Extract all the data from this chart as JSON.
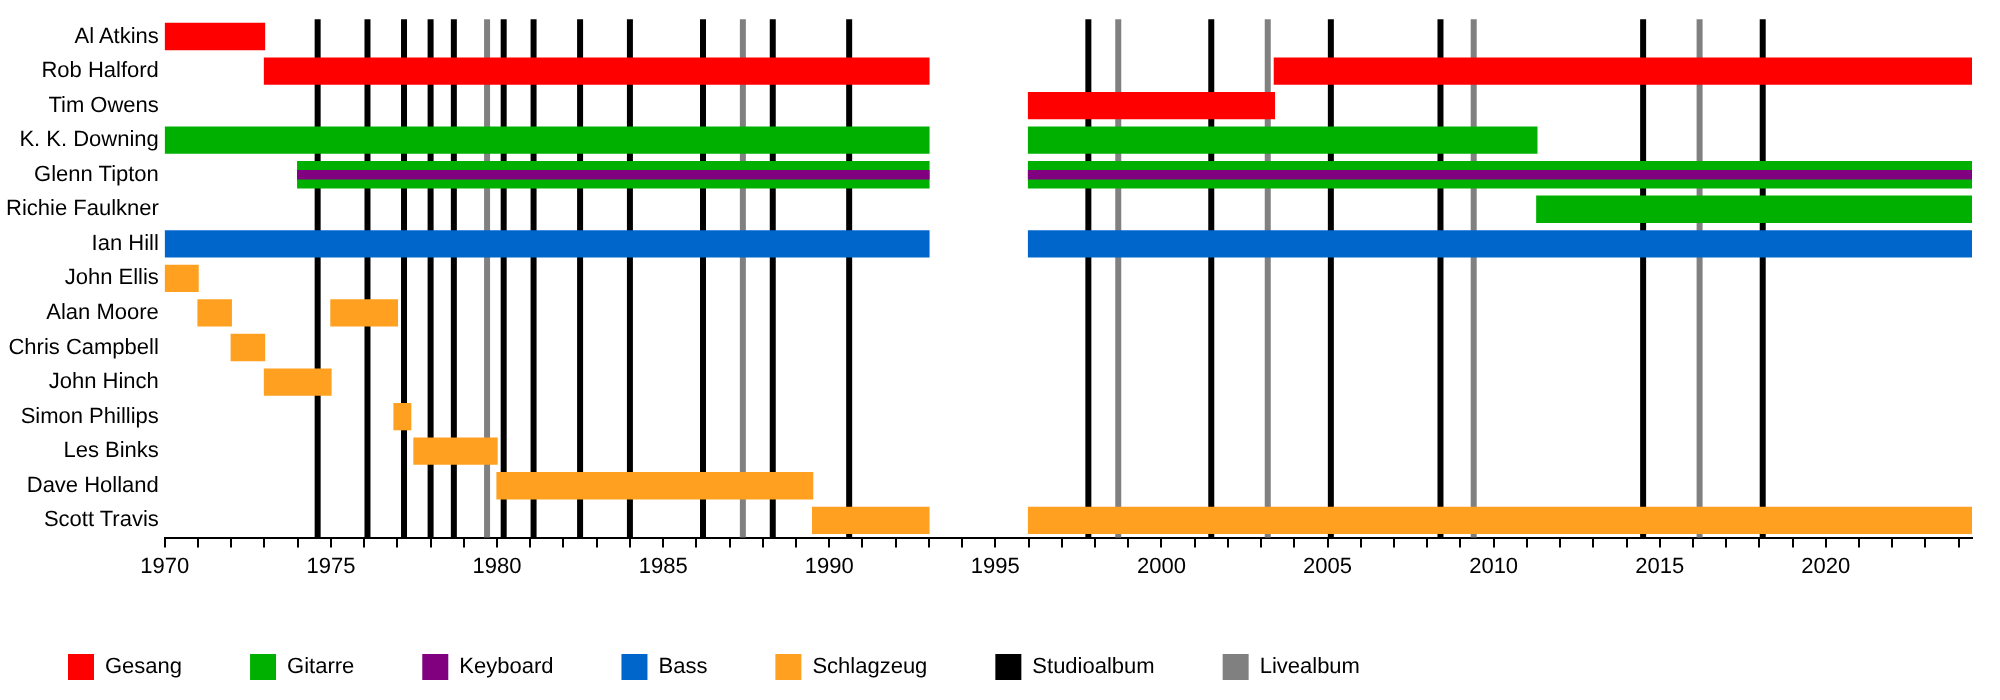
{
  "chart_data": {
    "type": "bar",
    "orientation": "horizontal",
    "legend": "bottom",
    "grid": false,
    "categories": [
      "Al Atkins",
      "Rob Halford",
      "Tim Owens",
      "K. K. Downing",
      "Glenn Tipton",
      "Richie Faulkner",
      "Ian Hill",
      "John Ellis",
      "Alan Moore",
      "Chris Campbell",
      "John Hinch",
      "Simon Phillips",
      "Les Binks",
      "Dave Holland",
      "Scott Travis"
    ],
    "xlim": [
      1970,
      2024.4
    ],
    "xticks": [
      1970,
      {
        "value": 1971,
        "label": null
      },
      {
        "value": 1972,
        "label": null
      },
      {
        "value": 1973,
        "label": null
      },
      {
        "value": 1974,
        "label": null
      },
      1975,
      {
        "value": 1976,
        "label": null
      },
      {
        "value": 1977,
        "label": null
      },
      {
        "value": 1978,
        "label": null
      },
      {
        "value": 1979,
        "label": null
      },
      1980,
      {
        "value": 1981,
        "label": null
      },
      {
        "value": 1982,
        "label": null
      },
      {
        "value": 1983,
        "label": null
      },
      {
        "value": 1984,
        "label": null
      },
      1985,
      {
        "value": 1986,
        "label": null
      },
      {
        "value": 1987,
        "label": null
      },
      {
        "value": 1988,
        "label": null
      },
      {
        "value": 1989,
        "label": null
      },
      1990,
      {
        "value": 1991,
        "label": null
      },
      {
        "value": 1992,
        "label": null
      },
      {
        "value": 1993,
        "label": null
      },
      {
        "value": 1994,
        "label": null
      },
      1995,
      {
        "value": 1996,
        "label": null
      },
      {
        "value": 1997,
        "label": null
      },
      {
        "value": 1998,
        "label": null
      },
      {
        "value": 1999,
        "label": null
      },
      2000,
      {
        "value": 2001,
        "label": null
      },
      {
        "value": 2002,
        "label": null
      },
      {
        "value": 2003,
        "label": null
      },
      {
        "value": 2004,
        "label": null
      },
      2005,
      {
        "value": 2006,
        "label": null
      },
      {
        "value": 2007,
        "label": null
      },
      {
        "value": 2008,
        "label": null
      },
      {
        "value": 2009,
        "label": null
      },
      2010,
      {
        "value": 2011,
        "label": null
      },
      {
        "value": 2012,
        "label": null
      },
      {
        "value": 2013,
        "label": null
      },
      {
        "value": 2014,
        "label": null
      },
      2015,
      {
        "value": 2016,
        "label": null
      },
      {
        "value": 2017,
        "label": null
      },
      {
        "value": 2018,
        "label": null
      },
      {
        "value": 2019,
        "label": null
      },
      2020,
      {
        "value": 2021,
        "label": null
      },
      {
        "value": 2022,
        "label": null
      },
      {
        "value": 2023,
        "label": null
      },
      {
        "value": 2024,
        "label": null
      }
    ],
    "series": [
      {
        "name": "Gesang",
        "color": "#ff0000",
        "base": [
          1970,
          1973,
          1996,
          null,
          null,
          null,
          null,
          null,
          null,
          null,
          null,
          null,
          null,
          null,
          null
        ],
        "values": [
          3,
          20,
          7.4,
          null,
          null,
          null,
          null,
          null,
          null,
          null,
          null,
          null,
          null,
          null,
          null
        ]
      },
      {
        "color": "#ff0000",
        "base": [
          null,
          2003.4,
          null,
          null,
          null,
          null,
          null,
          null,
          null,
          null,
          null,
          null,
          null,
          null,
          null
        ],
        "values": [
          null,
          21,
          null,
          null,
          null,
          null,
          null,
          null,
          null,
          null,
          null,
          null,
          null,
          null,
          null
        ]
      },
      {
        "name": "Gitarre",
        "color": "#00b000",
        "base": [
          null,
          null,
          null,
          1970,
          1974,
          2011.3,
          null,
          null,
          null,
          null,
          null,
          null,
          null,
          null,
          null
        ],
        "values": [
          null,
          null,
          null,
          23,
          19,
          13.1,
          null,
          null,
          null,
          null,
          null,
          null,
          null,
          null,
          null
        ]
      },
      {
        "color": "#00b000",
        "base": [
          null,
          null,
          null,
          1996,
          1996,
          null,
          null,
          null,
          null,
          null,
          null,
          null,
          null,
          null,
          null
        ],
        "values": [
          null,
          null,
          null,
          15.3,
          28.4,
          null,
          null,
          null,
          null,
          null,
          null,
          null,
          null,
          null,
          null
        ]
      },
      {
        "name": "Keyboard",
        "color": "#800080",
        "base": [
          null,
          null,
          null,
          null,
          1974,
          null,
          null,
          null,
          null,
          null,
          null,
          null,
          null,
          null,
          null
        ],
        "values": [
          null,
          null,
          null,
          null,
          19,
          null,
          null,
          null,
          null,
          null,
          null,
          null,
          null,
          null,
          null
        ]
      },
      {
        "color": "#800080",
        "base": [
          null,
          null,
          null,
          null,
          1996,
          null,
          null,
          null,
          null,
          null,
          null,
          null,
          null,
          null,
          null
        ],
        "values": [
          null,
          null,
          null,
          null,
          28.4,
          null,
          null,
          null,
          null,
          null,
          null,
          null,
          null,
          null,
          null
        ]
      },
      {
        "name": "Bass",
        "color": "#0066cc",
        "base": [
          null,
          null,
          null,
          null,
          null,
          null,
          1970,
          null,
          null,
          null,
          null,
          null,
          null,
          null,
          null
        ],
        "values": [
          null,
          null,
          null,
          null,
          null,
          null,
          23,
          null,
          null,
          null,
          null,
          null,
          null,
          null,
          null
        ]
      },
      {
        "color": "#0066cc",
        "base": [
          null,
          null,
          null,
          null,
          null,
          null,
          1996,
          null,
          null,
          null,
          null,
          null,
          null,
          null,
          null
        ],
        "values": [
          null,
          null,
          null,
          null,
          null,
          null,
          28.4,
          null,
          null,
          null,
          null,
          null,
          null,
          null,
          null
        ]
      },
      {
        "name": "Schlagzeug",
        "color": "#ffa020",
        "base": [
          null,
          null,
          null,
          null,
          null,
          null,
          null,
          1970,
          1971,
          1972,
          1973,
          1976.9,
          1977.5,
          1980,
          1989.5
        ],
        "values": [
          null,
          null,
          null,
          null,
          null,
          null,
          null,
          1,
          1,
          1,
          2,
          0.5,
          2.5,
          9.5,
          3.5
        ]
      },
      {
        "color": "#ffa020",
        "base": [
          null,
          null,
          null,
          null,
          null,
          null,
          null,
          null,
          1975,
          null,
          null,
          null,
          null,
          null,
          1996
        ],
        "values": [
          null,
          null,
          null,
          null,
          null,
          null,
          null,
          null,
          2,
          null,
          null,
          null,
          null,
          null,
          28.4
        ]
      }
    ],
    "ref_lines": [
      {
        "axis": "x",
        "value": 1974.6,
        "label": "Studioalbum",
        "color": "#000000"
      },
      {
        "axis": "x",
        "value": 1976.1,
        "color": "#000000"
      },
      {
        "axis": "x",
        "value": 1977.2,
        "color": "#000000"
      },
      {
        "axis": "x",
        "value": 1978.0,
        "color": "#000000"
      },
      {
        "axis": "x",
        "value": 1978.7,
        "color": "#000000"
      },
      {
        "axis": "x",
        "value": 1980.2,
        "color": "#000000"
      },
      {
        "axis": "x",
        "value": 1981.1,
        "color": "#000000"
      },
      {
        "axis": "x",
        "value": 1982.5,
        "color": "#000000"
      },
      {
        "axis": "x",
        "value": 1984.0,
        "color": "#000000"
      },
      {
        "axis": "x",
        "value": 1986.2,
        "color": "#000000"
      },
      {
        "axis": "x",
        "value": 1988.3,
        "color": "#000000"
      },
      {
        "axis": "x",
        "value": 1990.6,
        "color": "#000000"
      },
      {
        "axis": "x",
        "value": 1997.8,
        "color": "#000000"
      },
      {
        "axis": "x",
        "value": 2001.5,
        "color": "#000000"
      },
      {
        "axis": "x",
        "value": 2005.1,
        "color": "#000000"
      },
      {
        "axis": "x",
        "value": 2008.4,
        "color": "#000000"
      },
      {
        "axis": "x",
        "value": 2014.5,
        "color": "#000000"
      },
      {
        "axis": "x",
        "value": 2018.1,
        "color": "#000000"
      },
      {
        "axis": "x",
        "value": 1979.7,
        "label": "Livealbum",
        "color": "#808080"
      },
      {
        "axis": "x",
        "value": 1987.4,
        "color": "#808080"
      },
      {
        "axis": "x",
        "value": 1998.7,
        "color": "#808080"
      },
      {
        "axis": "x",
        "value": 2003.2,
        "color": "#808080"
      },
      {
        "axis": "x",
        "value": 2009.4,
        "color": "#808080"
      },
      {
        "axis": "x",
        "value": 2016.2,
        "color": "#808080"
      }
    ]
  }
}
